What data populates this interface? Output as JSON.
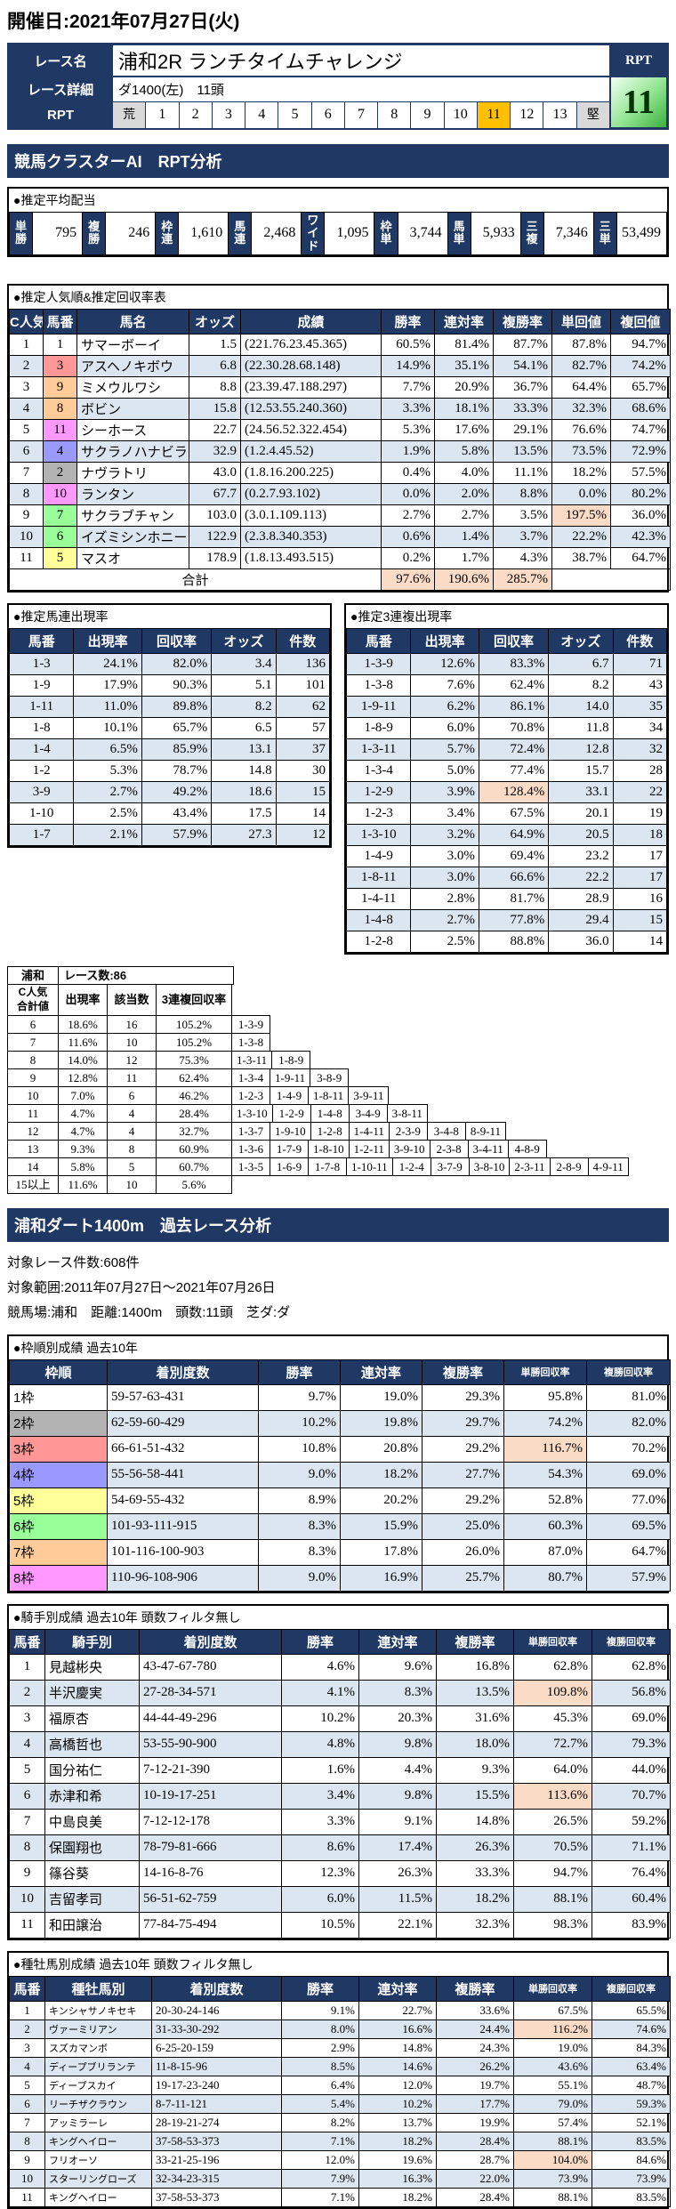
{
  "header": {
    "date": "開催日:2021年07月27日(火)"
  },
  "race": {
    "name_label": "レース名",
    "name": "浦和2R ランチタイムチャレンジ",
    "detail_label": "レース詳細",
    "detail": "ダ1400(左)　11頭",
    "rpt_label": "RPT",
    "rpt_corner_label": "RPT",
    "rpt_value": "11",
    "rpt_selected": "11",
    "rpt_scale": [
      "荒",
      "1",
      "2",
      "3",
      "4",
      "5",
      "6",
      "7",
      "8",
      "9",
      "10",
      "11",
      "12",
      "13",
      "堅"
    ]
  },
  "colors": {
    "navy": "#1F3864",
    "selected_gold": "#FFC000",
    "alt_row": "#DCE6F1",
    "peach_highlight": "#FADBC5",
    "orange_deep": "#FFA030",
    "orange_light": "#FFDCA8",
    "rpt_green": "#8FE48F",
    "horse_bracket": {
      "1": "1",
      "2": "2",
      "3": "3",
      "4": "4",
      "5": "5",
      "6": "6",
      "7": "6",
      "8": "7",
      "9": "7",
      "10": "8",
      "11": "8"
    },
    "bracket": {
      "1": "#FFFFFF",
      "2": "#B3B3B3",
      "3": "#FF9797",
      "4": "#9999FF",
      "5": "#FFFF99",
      "6": "#99FF99",
      "7": "#FFCC99",
      "8": "#FF99FF"
    }
  },
  "ai_section": {
    "title": "競馬クラスターAI　RPT分析",
    "payout": {
      "label": "●推定平均配当",
      "items": [
        {
          "label": "単勝",
          "value": "795"
        },
        {
          "label": "複勝",
          "value": "246"
        },
        {
          "label": "枠連",
          "value": "1,610"
        },
        {
          "label": "馬連",
          "value": "2,468"
        },
        {
          "label": "ワイド",
          "value": "1,095"
        },
        {
          "label": "枠単",
          "value": "3,744"
        },
        {
          "label": "馬単",
          "value": "5,933"
        },
        {
          "label": "三複",
          "value": "7,346"
        },
        {
          "label": "三単",
          "value": "53,499"
        }
      ]
    },
    "ranking": {
      "label": "●推定人気順&推定回収率表",
      "headers": [
        "C人気",
        "馬番",
        "馬名",
        "オッズ",
        "成績",
        "勝率",
        "連対率",
        "複勝率",
        "単回値",
        "複回値"
      ],
      "rows": [
        {
          "rank": "1",
          "num": "1",
          "name": "サマーボーイ",
          "odds": "1.5",
          "record": "(221.76.23.45.365)",
          "win": "60.5%",
          "ren": "81.4%",
          "fuku": "87.7%",
          "tan_v": "87.8%",
          "fuku_v": "94.7%"
        },
        {
          "rank": "2",
          "num": "3",
          "name": "アスヘノキボウ",
          "odds": "6.8",
          "record": "(22.30.28.68.148)",
          "win": "14.9%",
          "ren": "35.1%",
          "fuku": "54.1%",
          "tan_v": "82.7%",
          "fuku_v": "74.2%"
        },
        {
          "rank": "3",
          "num": "9",
          "name": "ミメウルワシ",
          "odds": "8.8",
          "record": "(23.39.47.188.297)",
          "win": "7.7%",
          "ren": "20.9%",
          "fuku": "36.7%",
          "tan_v": "64.4%",
          "fuku_v": "65.7%"
        },
        {
          "rank": "4",
          "num": "8",
          "name": "ボビン",
          "odds": "15.8",
          "record": "(12.53.55.240.360)",
          "win": "3.3%",
          "ren": "18.1%",
          "fuku": "33.3%",
          "tan_v": "32.3%",
          "fuku_v": "68.6%"
        },
        {
          "rank": "5",
          "num": "11",
          "name": "シーホース",
          "odds": "22.7",
          "record": "(24.56.52.322.454)",
          "win": "5.3%",
          "ren": "17.6%",
          "fuku": "29.1%",
          "tan_v": "76.6%",
          "fuku_v": "74.7%"
        },
        {
          "rank": "6",
          "num": "4",
          "name": "サクラノハナビラ",
          "odds": "32.9",
          "record": "(1.2.4.45.52)",
          "win": "1.9%",
          "ren": "5.8%",
          "fuku": "13.5%",
          "tan_v": "73.5%",
          "fuku_v": "72.9%"
        },
        {
          "rank": "7",
          "num": "2",
          "name": "ナヴラトリ",
          "odds": "43.0",
          "record": "(1.8.16.200.225)",
          "win": "0.4%",
          "ren": "4.0%",
          "fuku": "11.1%",
          "tan_v": "18.2%",
          "fuku_v": "57.5%"
        },
        {
          "rank": "8",
          "num": "10",
          "name": "ランタン",
          "odds": "67.7",
          "record": "(0.2.7.93.102)",
          "win": "0.0%",
          "ren": "2.0%",
          "fuku": "8.8%",
          "tan_v": "0.0%",
          "fuku_v": "80.2%"
        },
        {
          "rank": "9",
          "num": "7",
          "name": "サクラブチャン",
          "odds": "103.0",
          "record": "(3.0.1.109.113)",
          "win": "2.7%",
          "ren": "2.7%",
          "fuku": "3.5%",
          "tan_v": "197.5%",
          "fuku_v": "36.0%",
          "hl": "tan_v"
        },
        {
          "rank": "10",
          "num": "6",
          "name": "イズミシンホニー",
          "odds": "122.9",
          "record": "(2.3.8.340.353)",
          "win": "0.6%",
          "ren": "1.4%",
          "fuku": "3.7%",
          "tan_v": "22.2%",
          "fuku_v": "42.3%"
        },
        {
          "rank": "11",
          "num": "5",
          "name": "マスオ",
          "odds": "178.9",
          "record": "(1.8.13.493.515)",
          "win": "0.2%",
          "ren": "1.7%",
          "fuku": "4.3%",
          "tan_v": "38.7%",
          "fuku_v": "64.7%"
        }
      ],
      "total_label": "合計",
      "total": {
        "win": "97.6%",
        "ren": "190.6%",
        "fuku": "285.7%"
      }
    },
    "umaren": {
      "label": "●推定馬連出現率",
      "headers": [
        "馬番",
        "出現率",
        "回収率",
        "オッズ",
        "件数"
      ],
      "rows": [
        [
          "1-3",
          "24.1%",
          "82.0%",
          "3.4",
          "136"
        ],
        [
          "1-9",
          "17.9%",
          "90.3%",
          "5.1",
          "101"
        ],
        [
          "1-11",
          "11.0%",
          "89.8%",
          "8.2",
          "62"
        ],
        [
          "1-8",
          "10.1%",
          "65.7%",
          "6.5",
          "57"
        ],
        [
          "1-4",
          "6.5%",
          "85.9%",
          "13.1",
          "37"
        ],
        [
          "1-2",
          "5.3%",
          "78.7%",
          "14.8",
          "30"
        ],
        [
          "3-9",
          "2.7%",
          "49.2%",
          "18.6",
          "15"
        ],
        [
          "1-10",
          "2.5%",
          "43.4%",
          "17.5",
          "14"
        ],
        [
          "1-7",
          "2.1%",
          "57.9%",
          "27.3",
          "12"
        ]
      ],
      "highlights": []
    },
    "sanren": {
      "label": "●推定3連複出現率",
      "headers": [
        "馬番",
        "出現率",
        "回収率",
        "オッズ",
        "件数"
      ],
      "rows": [
        [
          "1-3-9",
          "12.6%",
          "83.3%",
          "6.7",
          "71"
        ],
        [
          "1-3-8",
          "7.6%",
          "62.4%",
          "8.2",
          "43"
        ],
        [
          "1-9-11",
          "6.2%",
          "86.1%",
          "14.0",
          "35"
        ],
        [
          "1-8-9",
          "6.0%",
          "70.8%",
          "11.8",
          "34"
        ],
        [
          "1-3-11",
          "5.7%",
          "72.4%",
          "12.8",
          "32"
        ],
        [
          "1-3-4",
          "5.0%",
          "77.4%",
          "15.7",
          "28"
        ],
        [
          "1-2-9",
          "3.9%",
          "128.4%",
          "33.1",
          "22"
        ],
        [
          "1-2-3",
          "3.4%",
          "67.5%",
          "20.1",
          "19"
        ],
        [
          "1-3-10",
          "3.2%",
          "64.9%",
          "20.5",
          "18"
        ],
        [
          "1-4-9",
          "3.0%",
          "69.4%",
          "23.2",
          "17"
        ],
        [
          "1-8-11",
          "3.0%",
          "66.6%",
          "22.2",
          "17"
        ],
        [
          "1-4-11",
          "2.8%",
          "81.7%",
          "28.9",
          "16"
        ],
        [
          "1-4-8",
          "2.7%",
          "77.8%",
          "29.4",
          "15"
        ],
        [
          "1-2-8",
          "2.5%",
          "88.8%",
          "36.0",
          "14"
        ]
      ],
      "highlights": [
        {
          "row": 6,
          "col": 2
        }
      ]
    },
    "cluster": {
      "place": "浦和",
      "races_label": "レース数:86",
      "key_line1": "C人気",
      "key_line2": "合計値",
      "col_headers": [
        "出現率",
        "該当数",
        "3連複回収率"
      ],
      "rows": [
        {
          "key": "6",
          "rate": "18.6%",
          "count": "16",
          "roi": "105.2%",
          "rate_hl": "deep",
          "count_hl": "deep",
          "roi_hl": "deep",
          "combos": [
            "1-3-9"
          ]
        },
        {
          "key": "7",
          "rate": "11.6%",
          "count": "10",
          "roi": "105.2%",
          "rate_hl": "deep",
          "count_hl": "deep",
          "combos": [
            "1-3-8"
          ]
        },
        {
          "key": "8",
          "rate": "14.0%",
          "count": "12",
          "roi": "75.3%",
          "rate_hl": "deep",
          "count_hl": "deep",
          "combos": [
            "1-3-11",
            "1-8-9"
          ]
        },
        {
          "key": "9",
          "rate": "12.8%",
          "count": "11",
          "roi": "62.4%",
          "rate_hl": "deep",
          "count_hl": "deep",
          "combos": [
            "1-3-4",
            "1-9-11",
            "3-8-9"
          ]
        },
        {
          "key": "10",
          "rate": "7.0%",
          "count": "6",
          "roi": "46.2%",
          "rate_hl": "light",
          "count_hl": "light",
          "combos": [
            "1-2-3",
            "1-4-9",
            "1-8-11",
            "3-9-11"
          ]
        },
        {
          "key": "11",
          "rate": "4.7%",
          "count": "4",
          "roi": "28.4%",
          "combos": [
            "1-3-10",
            "1-2-9",
            "1-4-8",
            "3-4-9",
            "3-8-11"
          ]
        },
        {
          "key": "12",
          "rate": "4.7%",
          "count": "4",
          "roi": "32.7%",
          "combos": [
            "1-3-7",
            "1-9-10",
            "1-2-8",
            "1-4-11",
            "2-3-9",
            "3-4-8",
            "8-9-11"
          ]
        },
        {
          "key": "13",
          "rate": "9.3%",
          "count": "8",
          "roi": "60.9%",
          "rate_hl": "deep",
          "count_hl": "deep",
          "combos": [
            "1-3-6",
            "1-7-9",
            "1-8-10",
            "1-2-11",
            "3-9-10",
            "2-3-8",
            "3-4-11",
            "4-8-9"
          ]
        },
        {
          "key": "14",
          "rate": "5.8%",
          "count": "5",
          "roi": "60.7%",
          "rate_hl": "light",
          "count_hl": "light",
          "combos": [
            "1-3-5",
            "1-6-9",
            "1-7-8",
            "1-10-11",
            "1-2-4",
            "3-7-9",
            "3-8-10",
            "2-3-11",
            "2-8-9",
            "4-9-11"
          ]
        },
        {
          "key": "15以上",
          "rate": "11.6%",
          "count": "10",
          "roi": "5.6%",
          "rate_hl": "deep",
          "count_hl": "deep",
          "combos": []
        }
      ]
    }
  },
  "past_section": {
    "title": "浦和ダート1400m　過去レース分析",
    "info": [
      "対象レース件数:608件",
      "対象範囲:2011年07月27日〜2021年07月26日",
      "競馬場:浦和　距離:1400m　頭数:11頭　芝ダ:ダ"
    ],
    "waku": {
      "label": "●枠順別成績 過去10年",
      "headers": [
        "枠順",
        "着別度数",
        "勝率",
        "連対率",
        "複勝率",
        "単勝回収率",
        "複勝回収率"
      ],
      "rows": [
        {
          "label": "1枠",
          "bracket": "1",
          "record": "59-57-63-431",
          "win": "9.7%",
          "ren": "19.0%",
          "fuku": "29.3%",
          "tan_v": "95.8%",
          "fuku_v": "81.0%"
        },
        {
          "label": "2枠",
          "bracket": "2",
          "record": "62-59-60-429",
          "win": "10.2%",
          "ren": "19.8%",
          "fuku": "29.7%",
          "tan_v": "74.2%",
          "fuku_v": "82.0%"
        },
        {
          "label": "3枠",
          "bracket": "3",
          "record": "66-61-51-432",
          "win": "10.8%",
          "ren": "20.8%",
          "fuku": "29.2%",
          "tan_v": "116.7%",
          "fuku_v": "70.2%",
          "hl": "tan_v"
        },
        {
          "label": "4枠",
          "bracket": "4",
          "record": "55-56-58-441",
          "win": "9.0%",
          "ren": "18.2%",
          "fuku": "27.7%",
          "tan_v": "54.3%",
          "fuku_v": "69.0%"
        },
        {
          "label": "5枠",
          "bracket": "5",
          "record": "54-69-55-432",
          "win": "8.9%",
          "ren": "20.2%",
          "fuku": "29.2%",
          "tan_v": "52.8%",
          "fuku_v": "77.0%"
        },
        {
          "label": "6枠",
          "bracket": "6",
          "record": "101-93-111-915",
          "win": "8.3%",
          "ren": "15.9%",
          "fuku": "25.0%",
          "tan_v": "60.3%",
          "fuku_v": "69.5%"
        },
        {
          "label": "7枠",
          "bracket": "7",
          "record": "101-116-100-903",
          "win": "8.3%",
          "ren": "17.8%",
          "fuku": "26.0%",
          "tan_v": "87.0%",
          "fuku_v": "64.7%"
        },
        {
          "label": "8枠",
          "bracket": "8",
          "record": "110-96-108-906",
          "win": "9.0%",
          "ren": "16.9%",
          "fuku": "25.7%",
          "tan_v": "80.7%",
          "fuku_v": "57.9%"
        }
      ]
    },
    "jockey": {
      "label": "●騎手別成績 過去10年 頭数フィルタ無し",
      "headers": [
        "馬番",
        "騎手別",
        "着別度数",
        "勝率",
        "連対率",
        "複勝率",
        "単勝回収率",
        "複勝回収率"
      ],
      "rows": [
        {
          "num": "1",
          "name": "見越彬央",
          "record": "43-47-67-780",
          "win": "4.6%",
          "ren": "9.6%",
          "fuku": "16.8%",
          "tan_v": "62.8%",
          "fuku_v": "62.8%"
        },
        {
          "num": "2",
          "name": "半沢慶実",
          "record": "27-28-34-571",
          "win": "4.1%",
          "ren": "8.3%",
          "fuku": "13.5%",
          "tan_v": "109.8%",
          "fuku_v": "56.8%",
          "hl": "tan_v"
        },
        {
          "num": "3",
          "name": "福原杏",
          "record": "44-44-49-296",
          "win": "10.2%",
          "ren": "20.3%",
          "fuku": "31.6%",
          "tan_v": "45.3%",
          "fuku_v": "69.0%"
        },
        {
          "num": "4",
          "name": "高橋哲也",
          "record": "53-55-90-900",
          "win": "4.8%",
          "ren": "9.8%",
          "fuku": "18.0%",
          "tan_v": "72.7%",
          "fuku_v": "79.3%"
        },
        {
          "num": "5",
          "name": "国分祐仁",
          "record": "7-12-21-390",
          "win": "1.6%",
          "ren": "4.4%",
          "fuku": "9.3%",
          "tan_v": "64.0%",
          "fuku_v": "44.0%"
        },
        {
          "num": "6",
          "name": "赤津和希",
          "record": "10-19-17-251",
          "win": "3.4%",
          "ren": "9.8%",
          "fuku": "15.5%",
          "tan_v": "113.6%",
          "fuku_v": "70.7%",
          "hl": "tan_v"
        },
        {
          "num": "7",
          "name": "中島良美",
          "record": "7-12-12-178",
          "win": "3.3%",
          "ren": "9.1%",
          "fuku": "14.8%",
          "tan_v": "26.5%",
          "fuku_v": "59.2%"
        },
        {
          "num": "8",
          "name": "保園翔也",
          "record": "78-79-81-666",
          "win": "8.6%",
          "ren": "17.4%",
          "fuku": "26.3%",
          "tan_v": "70.5%",
          "fuku_v": "71.1%"
        },
        {
          "num": "9",
          "name": "篠谷葵",
          "record": "14-16-8-76",
          "win": "12.3%",
          "ren": "26.3%",
          "fuku": "33.3%",
          "tan_v": "94.7%",
          "fuku_v": "76.4%"
        },
        {
          "num": "10",
          "name": "吉留孝司",
          "record": "56-51-62-759",
          "win": "6.0%",
          "ren": "11.5%",
          "fuku": "18.2%",
          "tan_v": "88.1%",
          "fuku_v": "60.4%"
        },
        {
          "num": "11",
          "name": "和田譲治",
          "record": "77-84-75-494",
          "win": "10.5%",
          "ren": "22.1%",
          "fuku": "32.3%",
          "tan_v": "98.3%",
          "fuku_v": "83.9%"
        }
      ]
    },
    "sire": {
      "label": "●種牡馬別成績 過去10年 頭数フィルタ無し",
      "headers": [
        "馬番",
        "種牡馬別",
        "着別度数",
        "勝率",
        "連対率",
        "複勝率",
        "単勝回収率",
        "複勝回収率"
      ],
      "rows": [
        {
          "num": "1",
          "name": "キンシャサノキセキ",
          "record": "20-30-24-146",
          "win": "9.1%",
          "ren": "22.7%",
          "fuku": "33.6%",
          "tan_v": "67.5%",
          "fuku_v": "65.5%"
        },
        {
          "num": "2",
          "name": "ヴァーミリアン",
          "record": "31-33-30-292",
          "win": "8.0%",
          "ren": "16.6%",
          "fuku": "24.4%",
          "tan_v": "116.2%",
          "fuku_v": "74.6%",
          "hl": "tan_v"
        },
        {
          "num": "3",
          "name": "スズカマンボ",
          "record": "6-25-20-159",
          "win": "2.9%",
          "ren": "14.8%",
          "fuku": "24.3%",
          "tan_v": "19.0%",
          "fuku_v": "84.3%"
        },
        {
          "num": "4",
          "name": "ディープブリランテ",
          "record": "11-8-15-96",
          "win": "8.5%",
          "ren": "14.6%",
          "fuku": "26.2%",
          "tan_v": "43.6%",
          "fuku_v": "63.4%"
        },
        {
          "num": "5",
          "name": "ディープスカイ",
          "record": "19-17-23-240",
          "win": "6.4%",
          "ren": "12.0%",
          "fuku": "19.7%",
          "tan_v": "55.1%",
          "fuku_v": "48.7%"
        },
        {
          "num": "6",
          "name": "リーチザクラウン",
          "record": "8-7-11-121",
          "win": "5.4%",
          "ren": "10.2%",
          "fuku": "17.7%",
          "tan_v": "79.0%",
          "fuku_v": "59.3%"
        },
        {
          "num": "7",
          "name": "アッミラーレ",
          "record": "28-19-21-274",
          "win": "8.2%",
          "ren": "13.7%",
          "fuku": "19.9%",
          "tan_v": "57.4%",
          "fuku_v": "52.1%"
        },
        {
          "num": "8",
          "name": "キングヘイロー",
          "record": "37-58-53-373",
          "win": "7.1%",
          "ren": "18.2%",
          "fuku": "28.4%",
          "tan_v": "88.1%",
          "fuku_v": "83.5%"
        },
        {
          "num": "9",
          "name": "フリオーソ",
          "record": "33-21-25-196",
          "win": "12.0%",
          "ren": "19.6%",
          "fuku": "28.7%",
          "tan_v": "104.0%",
          "fuku_v": "84.6%",
          "hl": "tan_v"
        },
        {
          "num": "10",
          "name": "スターリングローズ",
          "record": "32-34-23-315",
          "win": "7.9%",
          "ren": "16.3%",
          "fuku": "22.0%",
          "tan_v": "73.9%",
          "fuku_v": "73.9%"
        },
        {
          "num": "11",
          "name": "キングヘイロー",
          "record": "37-58-53-373",
          "win": "7.1%",
          "ren": "18.2%",
          "fuku": "28.4%",
          "tan_v": "88.1%",
          "fuku_v": "83.5%"
        }
      ]
    }
  }
}
